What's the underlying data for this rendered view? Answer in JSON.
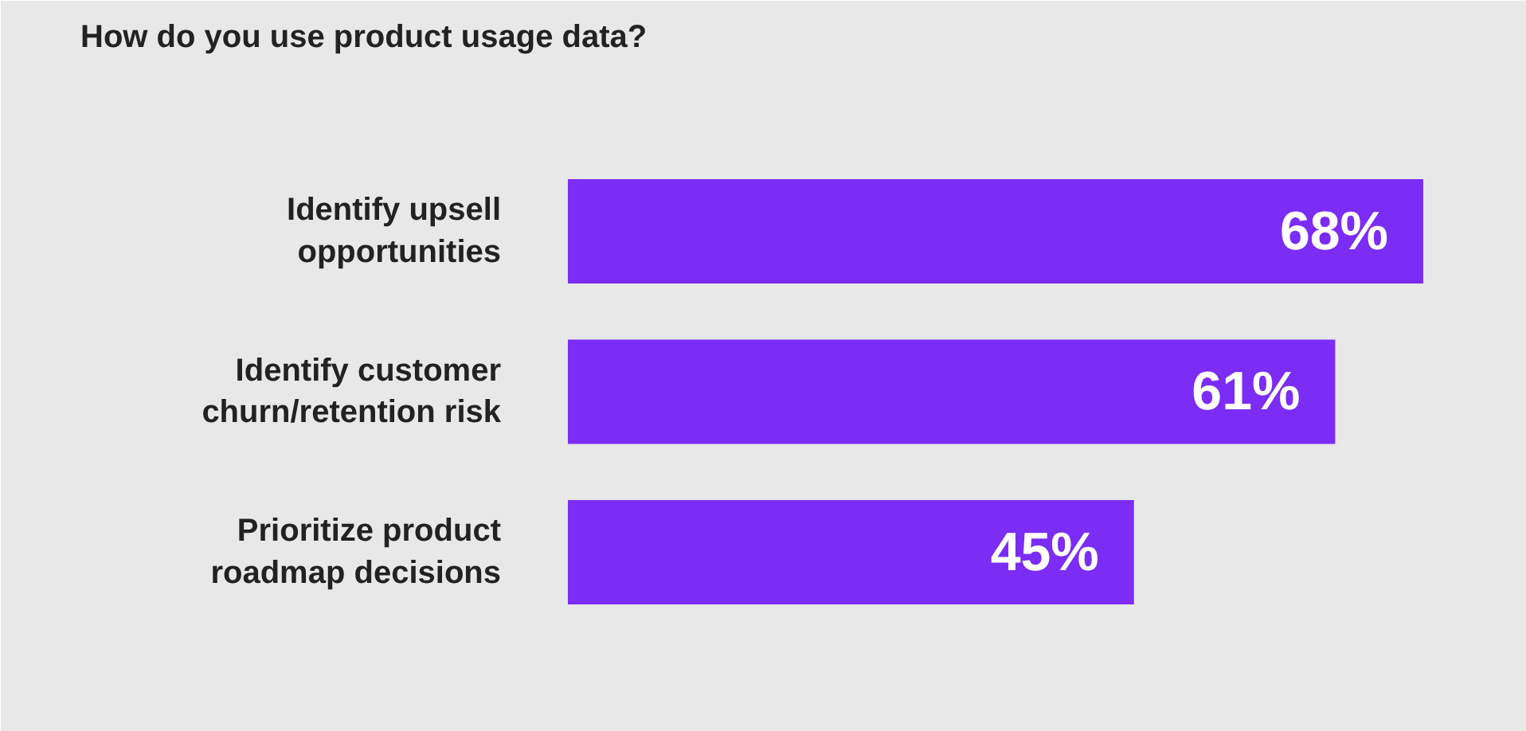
{
  "chart_data": {
    "type": "bar",
    "orientation": "horizontal",
    "title": "How do you use product usage data?",
    "categories": [
      "Identify upsell opportunities",
      "Identify customer churn/retention risk",
      "Prioritize product roadmap decisions"
    ],
    "values": [
      68,
      61,
      45
    ],
    "color": "#7b2cf5",
    "value_labels": [
      "68%",
      "61%",
      "45%"
    ]
  }
}
